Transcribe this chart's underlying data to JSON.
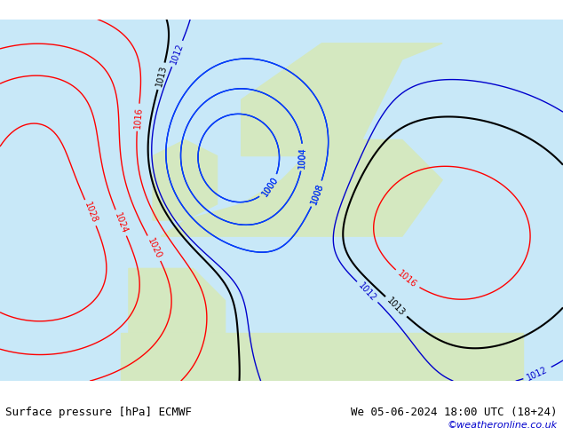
{
  "title_left": "Surface pressure [hPa] ECMWF",
  "title_right": "We 05-06-2024 18:00 UTC (18+24)",
  "copyright": "©weatheronline.co.uk",
  "background_color": "#ffffff",
  "map_background": "#e8f4e8",
  "figsize": [
    6.34,
    4.9
  ],
  "dpi": 100
}
